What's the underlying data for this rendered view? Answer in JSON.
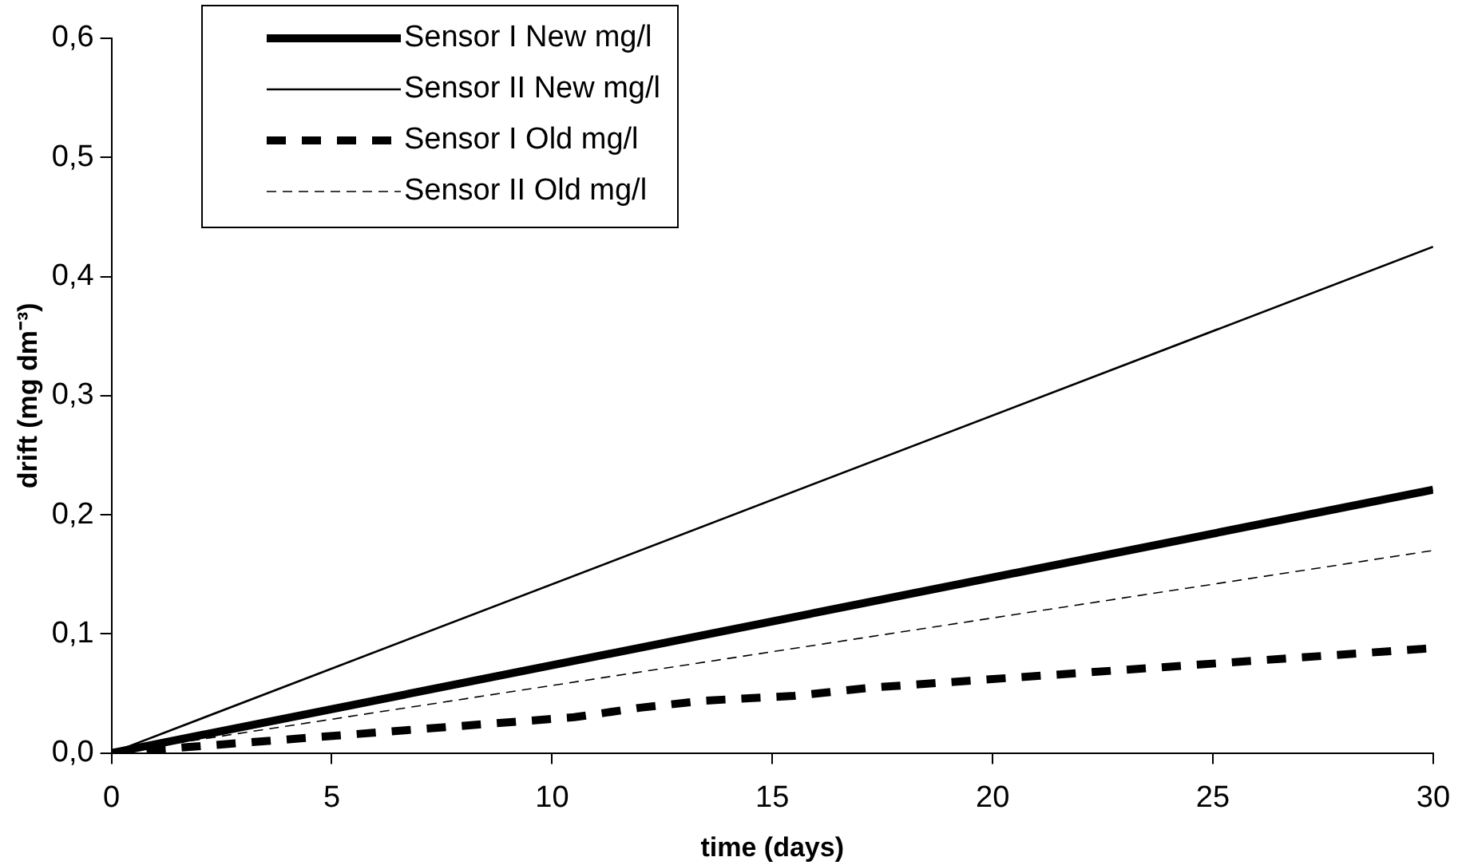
{
  "chart_data": {
    "type": "line",
    "xlabel": "time (days)",
    "ylabel": "drift (mg dm⁻³)",
    "xlim": [
      0,
      30
    ],
    "xticks": [
      0,
      5,
      10,
      15,
      20,
      25,
      30
    ],
    "ylim": [
      0,
      0.6
    ],
    "yticks": [
      {
        "value": 0,
        "label": "0,0"
      },
      {
        "value": 0.1,
        "label": "0,1"
      },
      {
        "value": 0.2,
        "label": "0,2"
      },
      {
        "value": 0.3,
        "label": "0,3"
      },
      {
        "value": 0.4,
        "label": "0,4"
      },
      {
        "value": 0.5,
        "label": "0,5"
      },
      {
        "value": 0.6,
        "label": "0,6"
      }
    ],
    "grid": false,
    "legend": "top left",
    "marker": "none",
    "series": [
      {
        "name": "Sensor I New mg/l",
        "color": "#000000",
        "line_style": "solid",
        "x": [
          0,
          30
        ],
        "values": [
          0,
          0.221
        ]
      },
      {
        "name": "Sensor II New mg/l",
        "color": "#000000",
        "line_style": "solid",
        "x": [
          0,
          30
        ],
        "values": [
          0,
          0.425
        ]
      },
      {
        "name": "Sensor I Old mg/l",
        "color": "#000000",
        "line_style": "dashed",
        "x": [
          0,
          10.5,
          12,
          13.5,
          15.5,
          17.3,
          30
        ],
        "values": [
          0,
          0.03,
          0.038,
          0.044,
          0.048,
          0.055,
          0.088
        ]
      },
      {
        "name": "Sensor II Old mg/l",
        "color": "#000000",
        "line_style": "dashed",
        "x": [
          0,
          30
        ],
        "values": [
          0,
          0.17
        ]
      }
    ]
  }
}
